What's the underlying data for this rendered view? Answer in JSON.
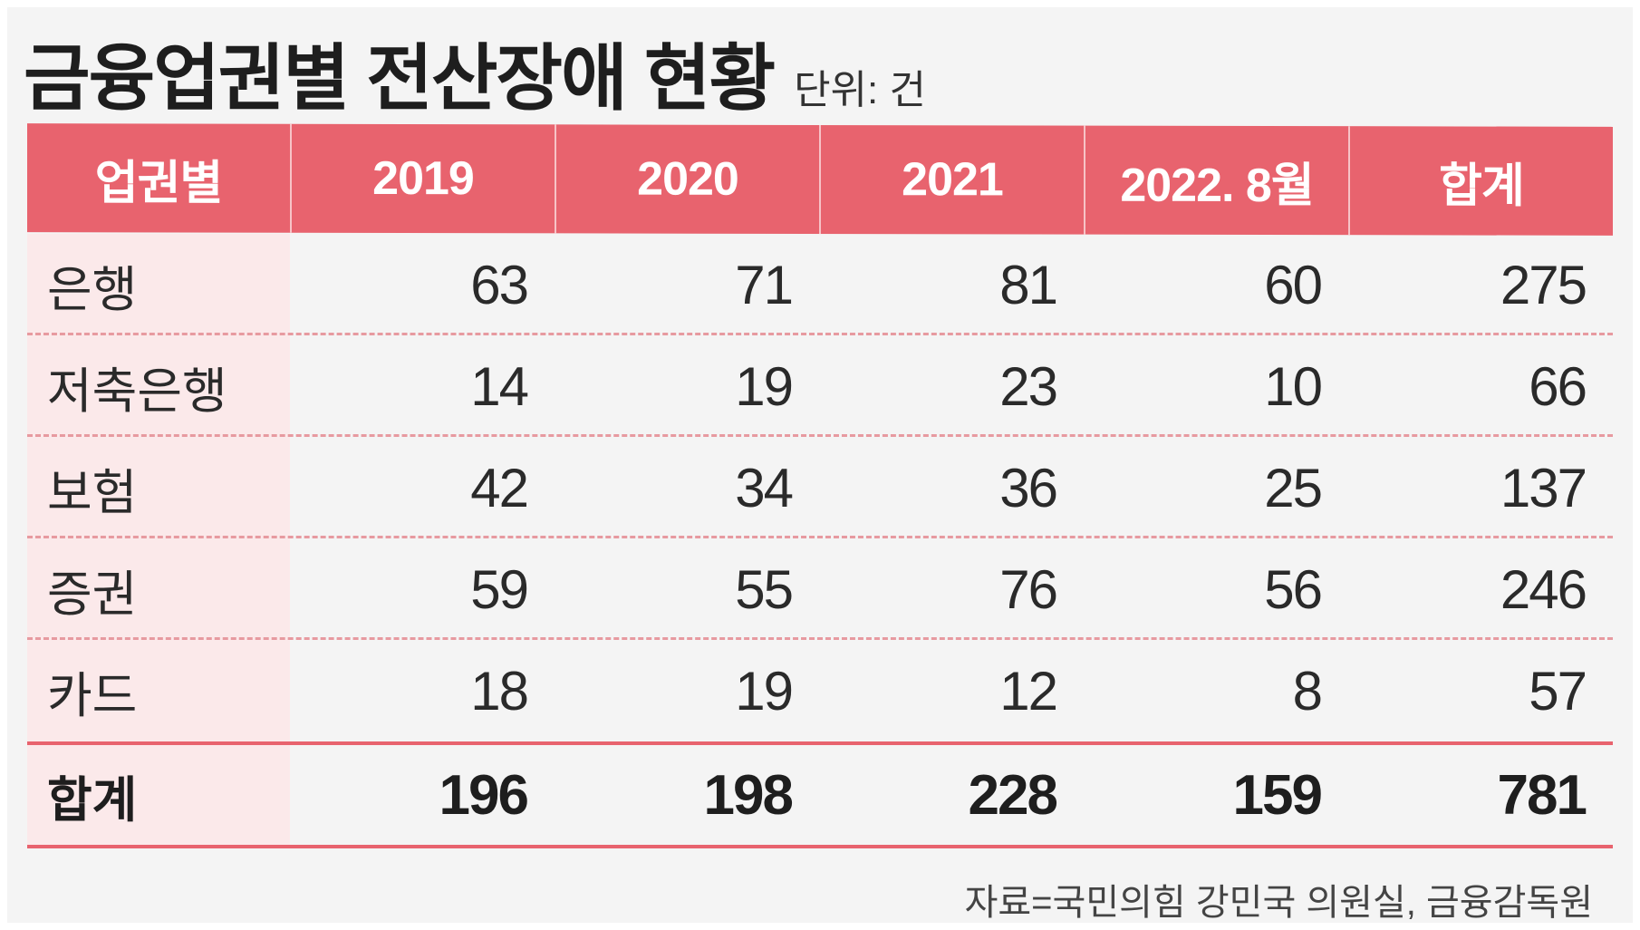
{
  "title": "금융업권별 전산장애 현황",
  "unit": "단위: 건",
  "source": "자료=국민의힘 강민국 의원실, 금융감독원",
  "colors": {
    "header_bg": "#e8636e",
    "header_text": "#ffffff",
    "row_label_bg": "#fbe9ea",
    "divider": "#e79aa0",
    "background": "#f4f4f4"
  },
  "chart_data": {
    "type": "table",
    "title": "금융업권별 전산장애 현황",
    "unit": "단위: 건",
    "columns": [
      "업권별",
      "2019",
      "2020",
      "2021",
      "2022. 8월",
      "합계"
    ],
    "rows": [
      {
        "label": "은행",
        "values": [
          "63",
          "71",
          "81",
          "60",
          "275"
        ]
      },
      {
        "label": "저축은행",
        "values": [
          "14",
          "19",
          "23",
          "10",
          "66"
        ]
      },
      {
        "label": "보험",
        "values": [
          "42",
          "34",
          "36",
          "25",
          "137"
        ]
      },
      {
        "label": "증권",
        "values": [
          "59",
          "55",
          "76",
          "56",
          "246"
        ]
      },
      {
        "label": "카드",
        "values": [
          "18",
          "19",
          "12",
          "8",
          "57"
        ]
      }
    ],
    "total": {
      "label": "합계",
      "values": [
        "196",
        "198",
        "228",
        "159",
        "781"
      ]
    },
    "source": "자료=국민의힘 강민국 의원실, 금융감독원"
  }
}
